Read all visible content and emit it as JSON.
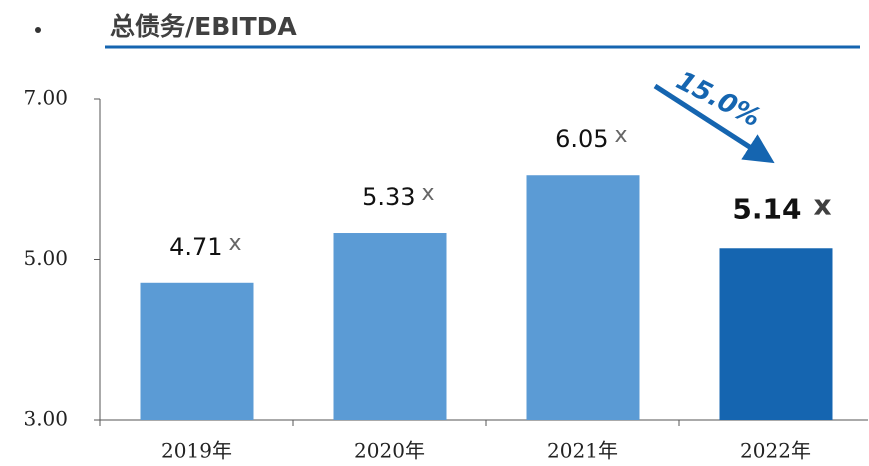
{
  "chart_data": {
    "type": "bar",
    "title": "总债务/EBITDA",
    "categories": [
      "2019年",
      "2020年",
      "2021年",
      "2022年"
    ],
    "values": [
      4.71,
      5.33,
      6.05,
      5.14
    ],
    "value_labels": [
      "4.71",
      "5.33",
      "6.05",
      "5.14"
    ],
    "unit_label": "x",
    "colors": [
      "#5b9bd5",
      "#5b9bd5",
      "#5b9bd5",
      "#1565b0"
    ],
    "emphasis": [
      false,
      false,
      false,
      true
    ],
    "ylim": [
      3,
      7
    ],
    "yticks": [
      {
        "value": 3,
        "label": "3.00"
      },
      {
        "value": 5,
        "label": "5.00"
      },
      {
        "value": 7,
        "label": "7.00"
      }
    ],
    "annotation": "15.0%"
  }
}
